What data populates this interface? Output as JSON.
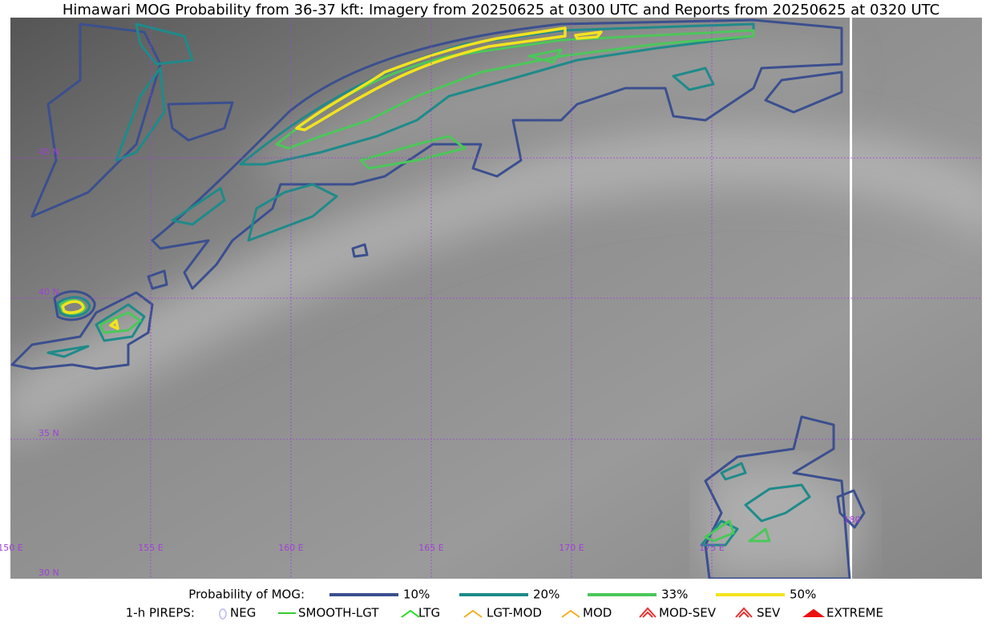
{
  "title": "Himawari MOG Probability from 36-37 kft: Imagery from 20250625 at 0300 UTC and Reports from 20250625 at 0320 UTC",
  "map": {
    "lat_labels": [
      "45 N",
      "40 N",
      "35 N",
      "30 N"
    ],
    "lon_labels": [
      "150 E",
      "155 E",
      "160 E",
      "165 E",
      "170 E",
      "175 E",
      "180"
    ],
    "grid_color": "#a040d8"
  },
  "legend": {
    "mog": {
      "label": "Probability of MOG:",
      "items": [
        {
          "label": "10%",
          "color": "#3b4f8f"
        },
        {
          "label": "20%",
          "color": "#1f8a8a"
        },
        {
          "label": "33%",
          "color": "#4cc75a"
        },
        {
          "label": "50%",
          "color": "#f2e31e"
        }
      ]
    },
    "pireps": {
      "label": "1-h PIREPS:",
      "items": [
        {
          "label": "NEG",
          "color": "#c8c8f0"
        },
        {
          "label": "SMOOTH-LGT",
          "color": "#33cc33"
        },
        {
          "label": "LTG",
          "color": "#22dd22"
        },
        {
          "label": "LGT-MOD",
          "color": "#f0b020"
        },
        {
          "label": "MOD",
          "color": "#f0b020"
        },
        {
          "label": "MOD-SEV",
          "color": "#ee3030"
        },
        {
          "label": "SEV",
          "color": "#ee3030"
        },
        {
          "label": "EXTREME",
          "color": "#ee1010"
        }
      ]
    }
  }
}
